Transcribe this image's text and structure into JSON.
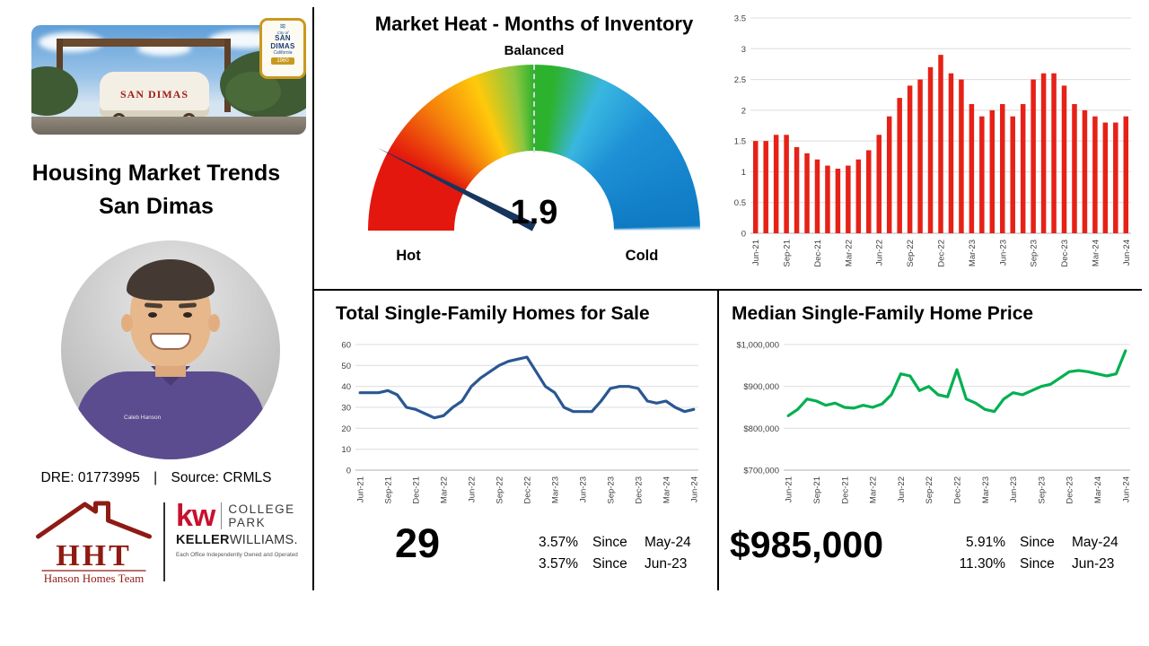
{
  "brand": {
    "hht_red": "#8E1B13",
    "kw_red": "#C8102E",
    "needle_navy": "#17365D"
  },
  "left_panel": {
    "title_line1": "Housing Market Trends",
    "title_line2": "San Dimas",
    "photo": {
      "wagon_text": "SAN DIMAS"
    },
    "badge": {
      "city_of": "City of",
      "name_line1": "SAN",
      "name_line2": "DIMAS",
      "state": "California",
      "year": "1960",
      "icon": "water-sun-icon"
    },
    "agent_name_tag": "Caleb Hanson",
    "dre": {
      "license": "DRE: 01773995",
      "separator": "|",
      "source": "Source: CRMLS"
    },
    "hht_logo": {
      "letters": "HHT",
      "team_name": "Hanson Homes Team",
      "icon": "house-roof-icon"
    },
    "kw_logo": {
      "mark": "kw",
      "office_line1": "COLLEGE",
      "office_line2": "PARK",
      "keller": "KELLER",
      "williams": "WILLIAMS.",
      "disclaimer": "Each Office Independently Owned and Operated"
    }
  },
  "gauge": {
    "title": "Market Heat - Months of Inventory",
    "top_label": "Balanced",
    "left_label": "Hot",
    "right_label": "Cold",
    "value": "1.9"
  },
  "homes_panel": {
    "title": "Total Single-Family Homes for Sale",
    "current_value": "29",
    "stats": [
      {
        "pct": "3.57%",
        "since": "Since",
        "period": "May-24"
      },
      {
        "pct": "3.57%",
        "since": "Since",
        "period": "Jun-23"
      }
    ]
  },
  "price_panel": {
    "title": "Median Single-Family Home Price",
    "current_value": "$985,000",
    "stats": [
      {
        "pct": "5.91%",
        "since": "Since",
        "period": "May-24"
      },
      {
        "pct": "11.30%",
        "since": "Since",
        "period": "Jun-23"
      }
    ]
  },
  "chart_data": [
    {
      "name": "months_of_inventory_history",
      "type": "bar",
      "title": "",
      "categories": [
        "Jun-21",
        "Jul-21",
        "Aug-21",
        "Sep-21",
        "Oct-21",
        "Nov-21",
        "Dec-21",
        "Jan-22",
        "Feb-22",
        "Mar-22",
        "Apr-22",
        "May-22",
        "Jun-22",
        "Jul-22",
        "Aug-22",
        "Sep-22",
        "Oct-22",
        "Nov-22",
        "Dec-22",
        "Jan-23",
        "Feb-23",
        "Mar-23",
        "Apr-23",
        "May-23",
        "Jun-23",
        "Jul-23",
        "Aug-23",
        "Sep-23",
        "Oct-23",
        "Nov-23",
        "Dec-23",
        "Jan-24",
        "Feb-24",
        "Mar-24",
        "Apr-24",
        "May-24",
        "Jun-24"
      ],
      "values": [
        1.5,
        1.5,
        1.6,
        1.6,
        1.4,
        1.3,
        1.2,
        1.1,
        1.05,
        1.1,
        1.2,
        1.35,
        1.6,
        1.9,
        2.2,
        2.4,
        2.5,
        2.7,
        2.9,
        2.6,
        2.5,
        2.1,
        1.9,
        2.0,
        2.1,
        1.9,
        2.1,
        2.5,
        2.6,
        2.6,
        2.4,
        2.1,
        2.0,
        1.9,
        1.8,
        1.8,
        1.9
      ],
      "ylim": [
        0,
        3.5
      ],
      "ytick": 0.5,
      "tick_format": "number",
      "color": "#E62117",
      "x_label_every": 3,
      "grid": true
    },
    {
      "name": "total_single_family_homes_for_sale",
      "type": "line",
      "title": "Total Single-Family Homes for Sale",
      "categories": [
        "Jun-21",
        "Jul-21",
        "Aug-21",
        "Sep-21",
        "Oct-21",
        "Nov-21",
        "Dec-21",
        "Jan-22",
        "Feb-22",
        "Mar-22",
        "Apr-22",
        "May-22",
        "Jun-22",
        "Jul-22",
        "Aug-22",
        "Sep-22",
        "Oct-22",
        "Nov-22",
        "Dec-22",
        "Jan-23",
        "Feb-23",
        "Mar-23",
        "Apr-23",
        "May-23",
        "Jun-23",
        "Jul-23",
        "Aug-23",
        "Sep-23",
        "Oct-23",
        "Nov-23",
        "Dec-23",
        "Jan-24",
        "Feb-24",
        "Mar-24",
        "Apr-24",
        "May-24",
        "Jun-24"
      ],
      "values": [
        37,
        37,
        37,
        38,
        36,
        30,
        29,
        27,
        25,
        26,
        30,
        33,
        40,
        44,
        47,
        50,
        52,
        53,
        54,
        47,
        40,
        37,
        30,
        28,
        28,
        28,
        33,
        39,
        40,
        40,
        39,
        33,
        32,
        33,
        30,
        28,
        29
      ],
      "ylim": [
        0,
        60
      ],
      "ytick": 10,
      "tick_format": "number",
      "color": "#2A5793",
      "x_label_every": 3,
      "grid": true
    },
    {
      "name": "median_single_family_home_price",
      "type": "line",
      "title": "Median Single-Family Home Price",
      "categories": [
        "Jun-21",
        "Jul-21",
        "Aug-21",
        "Sep-21",
        "Oct-21",
        "Nov-21",
        "Dec-21",
        "Jan-22",
        "Feb-22",
        "Mar-22",
        "Apr-22",
        "May-22",
        "Jun-22",
        "Jul-22",
        "Aug-22",
        "Sep-22",
        "Oct-22",
        "Nov-22",
        "Dec-22",
        "Jan-23",
        "Feb-23",
        "Mar-23",
        "Apr-23",
        "May-23",
        "Jun-23",
        "Jul-23",
        "Aug-23",
        "Sep-23",
        "Oct-23",
        "Nov-23",
        "Dec-23",
        "Jan-24",
        "Feb-24",
        "Mar-24",
        "Apr-24",
        "May-24",
        "Jun-24"
      ],
      "values": [
        830000,
        845000,
        870000,
        865000,
        855000,
        860000,
        850000,
        848000,
        855000,
        850000,
        858000,
        880000,
        930000,
        925000,
        890000,
        900000,
        880000,
        875000,
        940000,
        870000,
        860000,
        845000,
        840000,
        870000,
        885000,
        880000,
        890000,
        900000,
        905000,
        920000,
        935000,
        938000,
        935000,
        930000,
        925000,
        930000,
        985000
      ],
      "ylim": [
        700000,
        1000000
      ],
      "ytick": 100000,
      "tick_format": "currency",
      "color": "#00B050",
      "x_label_every": 3,
      "grid": true
    }
  ]
}
